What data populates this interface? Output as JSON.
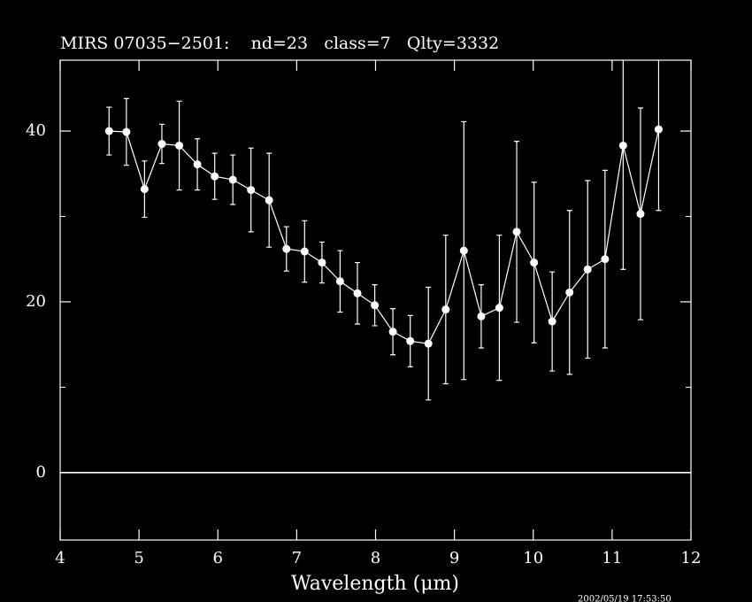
{
  "chart_data": {
    "type": "line",
    "title": "MIRS 07035−2501:    nd=23   class=7   Qlty=3332",
    "xlabel": "Wavelength (μm)",
    "timestamp": "2002/05/19 17:53:50",
    "x": [
      4.62,
      4.84,
      5.07,
      5.29,
      5.51,
      5.74,
      5.96,
      6.19,
      6.42,
      6.65,
      6.87,
      7.1,
      7.32,
      7.55,
      7.77,
      7.99,
      8.22,
      8.44,
      8.67,
      8.89,
      9.12,
      9.34,
      9.57,
      9.79,
      10.01,
      10.24,
      10.46,
      10.69,
      10.91,
      11.14,
      11.36,
      11.59
    ],
    "series": [
      {
        "color": "#ffffff",
        "values": [
          40.0,
          39.9,
          33.2,
          38.5,
          38.3,
          36.1,
          34.7,
          34.3,
          33.1,
          31.9,
          26.2,
          25.9,
          24.6,
          22.4,
          21.0,
          19.6,
          16.5,
          15.4,
          15.1,
          19.1,
          26.0,
          18.3,
          19.3,
          28.2,
          24.6,
          17.7,
          21.1,
          23.8,
          25.0,
          38.3,
          30.3,
          40.2
        ],
        "errors": [
          2.8,
          3.9,
          3.3,
          2.3,
          5.2,
          3.0,
          2.7,
          2.9,
          4.9,
          5.5,
          2.6,
          3.6,
          2.4,
          3.6,
          3.6,
          2.4,
          2.7,
          3.0,
          6.6,
          8.7,
          15.1,
          3.7,
          8.5,
          10.6,
          9.4,
          5.8,
          9.6,
          10.4,
          10.4,
          14.5,
          12.4,
          9.5
        ]
      }
    ],
    "hline": 0,
    "xlim": [
      4,
      12
    ],
    "ylim": [
      -7.9,
      48.3
    ],
    "xticks": [
      4,
      5,
      6,
      7,
      8,
      9,
      10,
      11,
      12
    ],
    "yticks": [
      0,
      20,
      40
    ],
    "yminorticks": [
      10,
      30
    ]
  }
}
